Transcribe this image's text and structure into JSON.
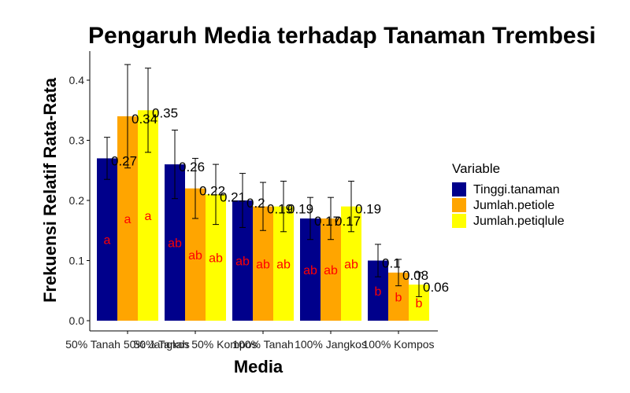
{
  "chart_data": {
    "type": "bar",
    "title": "Pengaruh Media terhadap Tanaman Trembesi",
    "xlabel": "Media",
    "ylabel": "Frekuensi Relatif Rata-Rata",
    "ylim": [
      0,
      0.45
    ],
    "yticks": [
      "0.0",
      "0.1",
      "0.2",
      "0.3",
      "0.4"
    ],
    "categories": [
      "50% Tanah 50% Jangkos",
      "50% Tanah 50% Kompos",
      "100% Tanah",
      "100% Jangkos",
      "100% Kompos"
    ],
    "legend": {
      "title": "Variable",
      "position": "right"
    },
    "grid": false,
    "series": [
      {
        "name": "Tinggi.tanaman",
        "color": "#00008b",
        "values": [
          0.27,
          0.26,
          0.2,
          0.17,
          0.1
        ],
        "value_labels": [
          "0.27",
          "0.26",
          "0.2",
          "0.17",
          "0.1"
        ],
        "error": [
          0.035,
          0.057,
          0.045,
          0.035,
          0.027
        ],
        "letters": [
          "a",
          "ab",
          "ab",
          "ab",
          "b"
        ]
      },
      {
        "name": "Jumlah.petiole",
        "color": "#ffa500",
        "values": [
          0.34,
          0.22,
          0.19,
          0.17,
          0.08
        ],
        "value_labels": [
          "0.34",
          "0.22",
          "0.19",
          "0.17",
          "0.08"
        ],
        "error": [
          0.086,
          0.05,
          0.04,
          0.035,
          0.022
        ],
        "letters": [
          "a",
          "ab",
          "ab",
          "ab",
          "b"
        ]
      },
      {
        "name": "Jumlah.petiqlule",
        "color": "#ffff00",
        "values": [
          0.35,
          0.21,
          0.19,
          0.19,
          0.06
        ],
        "value_labels": [
          "0.35",
          "0.21",
          "0.19",
          "0.19",
          "0.06"
        ],
        "error": [
          0.07,
          0.05,
          0.042,
          0.042,
          0.02
        ],
        "letters": [
          "a",
          "ab",
          "ab",
          "ab",
          "b"
        ]
      }
    ]
  }
}
